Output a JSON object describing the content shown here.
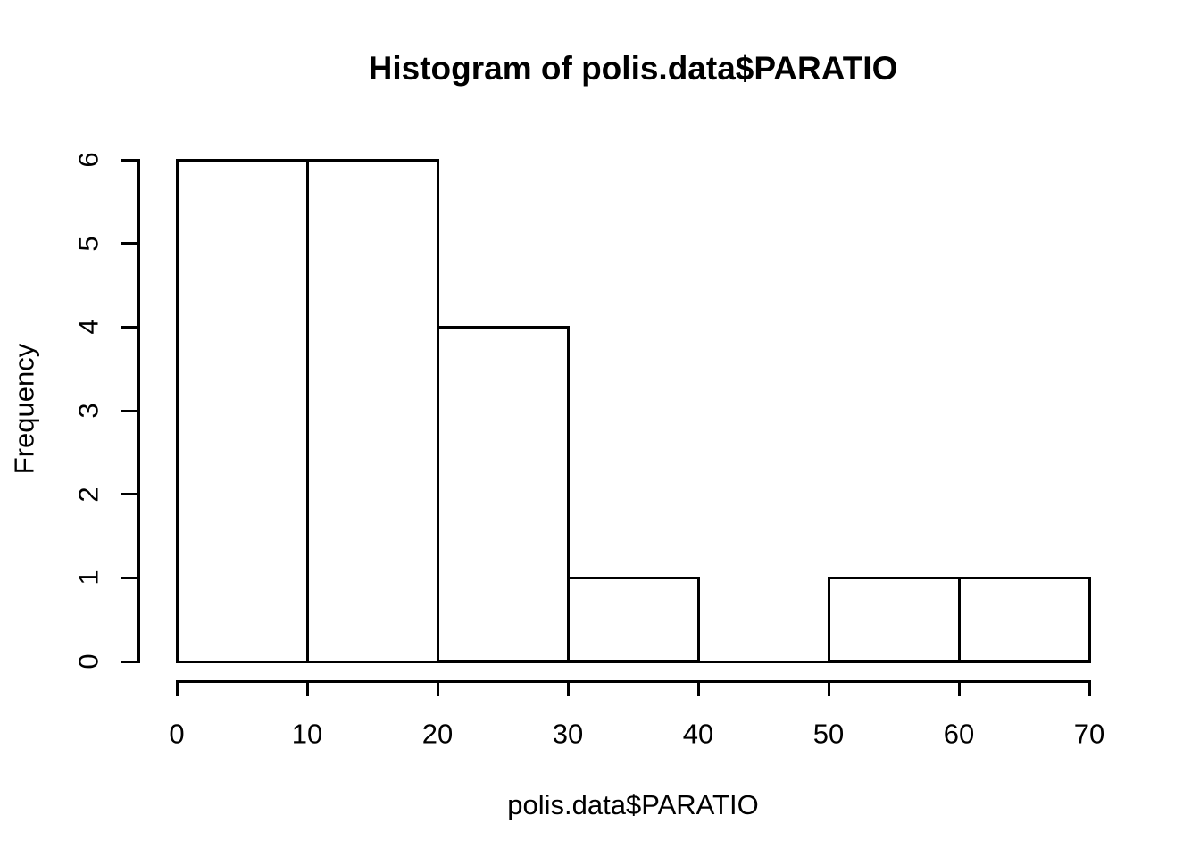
{
  "figure": {
    "background": "#ffffff",
    "foreground": "#000000"
  },
  "chart_data": {
    "type": "bar",
    "subtype": "histogram",
    "title": "Histogram of polis.data$PARATIO",
    "xlabel": "polis.data$PARATIO",
    "ylabel": "Frequency",
    "bin_edges": [
      0,
      10,
      20,
      30,
      40,
      50,
      60,
      70
    ],
    "counts": [
      6,
      6,
      4,
      1,
      0,
      1,
      1
    ],
    "x_ticks": [
      0,
      10,
      20,
      30,
      40,
      50,
      60,
      70
    ],
    "y_ticks": [
      0,
      1,
      2,
      3,
      4,
      5,
      6
    ],
    "xlim": [
      0,
      70
    ],
    "ylim": [
      0,
      6
    ],
    "grid": false,
    "legend": false,
    "bar_fill": "#ffffff",
    "bar_border": "#000000"
  }
}
